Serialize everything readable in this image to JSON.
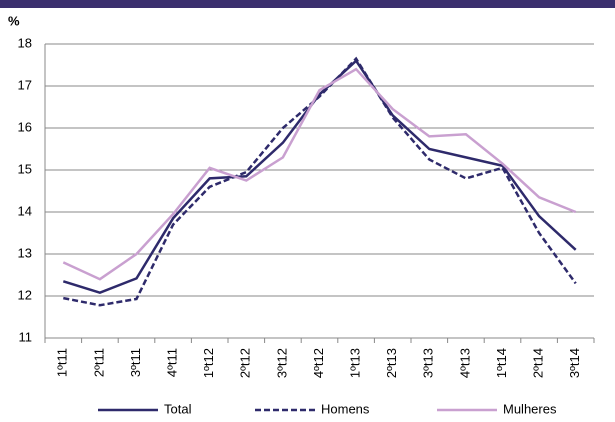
{
  "chart_data": {
    "type": "line",
    "y_label": "%",
    "categories": [
      "1ºt11",
      "2ºt11",
      "3ºt11",
      "4ºt11",
      "1ºt12",
      "2ºt12",
      "3ºt12",
      "4ºt12",
      "1ºt13",
      "2ºt13",
      "3ºt13",
      "4ºt13",
      "1ºt14",
      "2ºt14",
      "3ºt14"
    ],
    "series": [
      {
        "name": "Total",
        "color": "#2e2a6b",
        "dash": false,
        "values": [
          12.35,
          12.08,
          12.42,
          13.85,
          14.8,
          14.85,
          15.65,
          16.8,
          17.6,
          16.3,
          15.5,
          15.3,
          15.1,
          13.9,
          13.1
        ]
      },
      {
        "name": "Homens",
        "color": "#2e2a6b",
        "dash": true,
        "values": [
          11.95,
          11.78,
          11.93,
          13.7,
          14.6,
          14.95,
          16.0,
          16.75,
          17.65,
          16.25,
          15.25,
          14.8,
          15.05,
          13.5,
          12.3
        ]
      },
      {
        "name": "Mulheres",
        "color": "#c9a0d0",
        "dash": false,
        "values": [
          12.8,
          12.4,
          13.0,
          13.95,
          15.05,
          14.75,
          15.3,
          16.9,
          17.4,
          16.45,
          15.8,
          15.85,
          15.15,
          14.35,
          14.0
        ]
      }
    ],
    "ylim": [
      11,
      18
    ],
    "yticks": [
      11,
      12,
      13,
      14,
      15,
      16,
      17,
      18
    ],
    "grid": true
  }
}
